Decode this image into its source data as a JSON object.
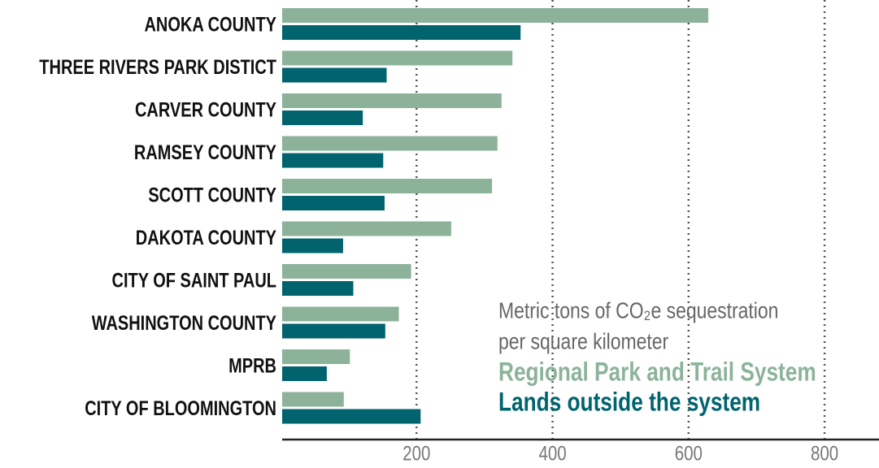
{
  "chart_data": {
    "type": "bar",
    "orientation": "horizontal",
    "categories": [
      "ANOKA COUNTY",
      "THREE RIVERS PARK DISTICT",
      "CARVER COUNTY",
      "RAMSEY COUNTY",
      "SCOTT COUNTY",
      "DAKOTA COUNTY",
      "CITY OF SAINT PAUL",
      "WASHINGTON COUNTY",
      "MPRB",
      "CITY OF BLOOMINGTON"
    ],
    "series": [
      {
        "name": "Regional Park and Trail System",
        "color": "#8cb39a",
        "values": [
          629,
          341,
          325,
          319,
          311,
          251,
          192,
          174,
          102,
          93
        ]
      },
      {
        "name": "Lands outside the system",
        "color": "#00636e",
        "values": [
          353,
          156,
          121,
          151,
          153,
          92,
          107,
          154,
          68,
          206
        ]
      }
    ],
    "axis_label": [
      "Metric tons of CO₂e sequestration",
      "per square kilometer"
    ],
    "xlim": [
      0,
      880
    ],
    "xticks": [
      200,
      400,
      600,
      800
    ],
    "grid": true
  }
}
